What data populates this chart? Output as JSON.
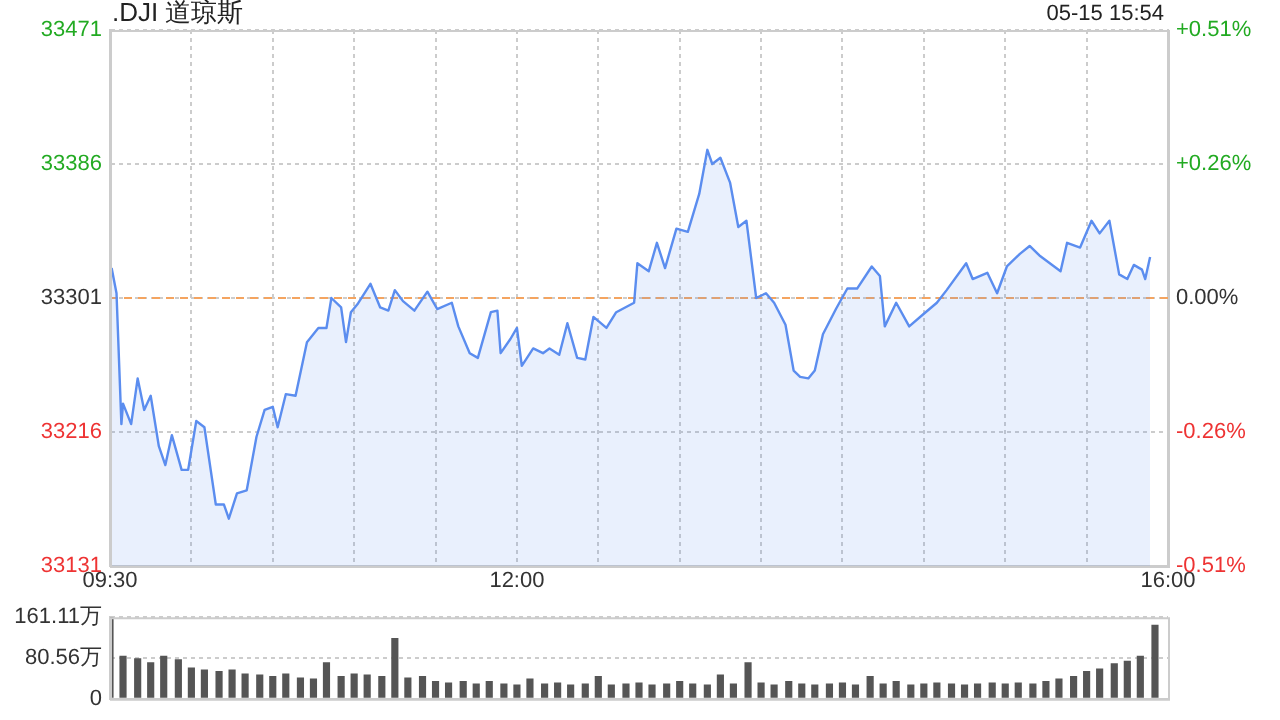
{
  "chart_data": [
    {
      "type": "area",
      "title": ".DJI 道琼斯",
      "annotations": [
        "05-15 15:54"
      ],
      "x": [
        9.51,
        9.54,
        9.57,
        9.58,
        9.63,
        9.67,
        9.71,
        9.75,
        9.8,
        9.84,
        9.88,
        9.94,
        9.98,
        10.03,
        10.08,
        10.15,
        10.2,
        10.23,
        10.28,
        10.34,
        10.4,
        10.45,
        10.5,
        10.53,
        10.58,
        10.64,
        10.71,
        10.78,
        10.83,
        10.86,
        10.92,
        10.95,
        10.98,
        11.02,
        11.1,
        11.16,
        11.21,
        11.25,
        11.3,
        11.37,
        11.45,
        11.51,
        11.6,
        11.64,
        11.71,
        11.76,
        11.84,
        11.88,
        11.9,
        11.96,
        12,
        12.03,
        12.1,
        12.16,
        12.2,
        12.26,
        12.31,
        12.37,
        12.42,
        12.47,
        12.55,
        12.61,
        12.72,
        12.74,
        12.81,
        12.86,
        12.91,
        12.98,
        13.05,
        13.12,
        13.17,
        13.2,
        13.25,
        13.31,
        13.36,
        13.41,
        13.47,
        13.53,
        13.58,
        13.65,
        13.7,
        13.74,
        13.79,
        13.83,
        13.88,
        13.96,
        14.03,
        14.09,
        14.18,
        14.23,
        14.26,
        14.33,
        14.41,
        14.5,
        14.58,
        14.64,
        14.76,
        14.8,
        14.89,
        14.95,
        15.01,
        15.09,
        15.15,
        15.21,
        15.34,
        15.38,
        15.46,
        15.53,
        15.58,
        15.64,
        15.7,
        15.75,
        15.79,
        15.84,
        15.86,
        15.89
      ],
      "series": [
        {
          "color": "#5b8def",
          "values": [
            33320,
            33304,
            33221,
            33234,
            33221,
            33250,
            33230,
            33239,
            33207,
            33195,
            33214,
            33192,
            33192,
            33223,
            33219,
            33170,
            33170,
            33161,
            33177,
            33179,
            33213,
            33230,
            33232,
            33219,
            33240,
            33239,
            33273,
            33282,
            33282,
            33301,
            33295,
            33273,
            33292,
            33297,
            33310,
            33295,
            33293,
            33306,
            33299,
            33293,
            33305,
            33294,
            33298,
            33283,
            33266,
            33263,
            33292,
            33293,
            33266,
            33275,
            33282,
            33258,
            33269,
            33266,
            33269,
            33265,
            33285,
            33263,
            33262,
            33289,
            33282,
            33292,
            33298,
            33323,
            33318,
            33336,
            33320,
            33345,
            33343,
            33367,
            33395,
            33386,
            33390,
            33374,
            33346,
            33350,
            33301,
            33304,
            33298,
            33284,
            33255,
            33251,
            33250,
            33255,
            33278,
            33294,
            33307,
            33307,
            33321,
            33315,
            33283,
            33298,
            33283,
            33291,
            33298,
            33306,
            33323,
            33313,
            33317,
            33304,
            33321,
            33329,
            33334,
            33328,
            33318,
            33336,
            33333,
            33350,
            33342,
            33350,
            33316,
            33313,
            33322,
            33319,
            33313,
            33327
          ]
        }
      ],
      "xlim": [
        9.5,
        16
      ],
      "xticks": [
        {
          "value": 9.5,
          "label": "09:30"
        },
        {
          "value": 10,
          "label": null
        },
        {
          "value": 10.5,
          "label": null
        },
        {
          "value": 11,
          "label": null
        },
        {
          "value": 11.5,
          "label": null
        },
        {
          "value": 12,
          "label": "12:00"
        },
        {
          "value": 12.5,
          "label": null
        },
        {
          "value": 13,
          "label": null
        },
        {
          "value": 13.5,
          "label": null
        },
        {
          "value": 14,
          "label": null
        },
        {
          "value": 14.5,
          "label": null
        },
        {
          "value": 15,
          "label": null
        },
        {
          "value": 15.5,
          "label": null
        },
        {
          "value": 16,
          "label": "16:00"
        }
      ],
      "ylim": [
        33131,
        33471
      ],
      "yticks": [
        33131,
        33216,
        33301,
        33386,
        33471
      ],
      "y2lim": [
        -0.51,
        0.51
      ],
      "y2ticks": [
        {
          "value": -0.51,
          "label": "-0.51%"
        },
        {
          "value": -0.255,
          "label": "-0.26%"
        },
        {
          "value": 0,
          "label": "0.00%"
        },
        {
          "value": 0.255,
          "label": "+0.26%"
        },
        {
          "value": 0.51,
          "label": "+0.51%"
        }
      ],
      "grid": true,
      "ref_lines": [
        {
          "axis": "y",
          "value": 33301,
          "color": "#f4a460",
          "line_style": "dashed"
        }
      ]
    },
    {
      "type": "bar",
      "tick_labels": "y",
      "grid": "y",
      "color": "#555555",
      "x": [
        9.5,
        9.58,
        9.67,
        9.75,
        9.83,
        9.92,
        10,
        10.08,
        10.17,
        10.25,
        10.33,
        10.42,
        10.5,
        10.58,
        10.67,
        10.75,
        10.83,
        10.92,
        11,
        11.08,
        11.17,
        11.25,
        11.33,
        11.42,
        11.5,
        11.58,
        11.67,
        11.75,
        11.83,
        11.92,
        12,
        12.08,
        12.17,
        12.25,
        12.33,
        12.42,
        12.5,
        12.58,
        12.67,
        12.75,
        12.83,
        12.92,
        13,
        13.08,
        13.17,
        13.25,
        13.33,
        13.42,
        13.5,
        13.58,
        13.67,
        13.75,
        13.83,
        13.92,
        14,
        14.08,
        14.17,
        14.25,
        14.33,
        14.42,
        14.5,
        14.58,
        14.67,
        14.75,
        14.83,
        14.92,
        15,
        15.08,
        15.17,
        15.25,
        15.33,
        15.42,
        15.5,
        15.58,
        15.67,
        15.75,
        15.83,
        15.92
      ],
      "values": [
        161,
        85,
        80,
        72,
        85,
        78,
        62,
        58,
        55,
        58,
        50,
        48,
        45,
        50,
        42,
        40,
        72,
        45,
        50,
        48,
        45,
        120,
        42,
        45,
        35,
        32,
        35,
        30,
        35,
        30,
        28,
        40,
        30,
        32,
        28,
        30,
        45,
        28,
        30,
        32,
        28,
        30,
        35,
        30,
        28,
        48,
        30,
        72,
        32,
        28,
        35,
        30,
        28,
        30,
        32,
        28,
        45,
        30,
        35,
        28,
        30,
        32,
        30,
        28,
        30,
        32,
        30,
        32,
        30,
        35,
        40,
        45,
        55,
        60,
        70,
        75,
        85,
        146
      ],
      "xlim": [
        9.5,
        16
      ],
      "ylim": [
        0,
        161.11
      ],
      "yticks": [
        0,
        {
          "value": 80.56,
          "label": "80.56万"
        },
        {
          "value": 161.11,
          "label": "161.11万"
        }
      ]
    }
  ]
}
